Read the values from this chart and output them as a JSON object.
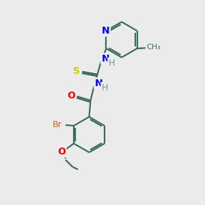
{
  "background_color": "#ebebeb",
  "bond_color": "#3a6b5a",
  "bond_width": 1.6,
  "atom_colors": {
    "N": "#0000ee",
    "O": "#ff0000",
    "S": "#cccc00",
    "Br": "#cc6600",
    "H": "#6a9a8a",
    "C": "#3a6b5a"
  },
  "font_size": 9
}
